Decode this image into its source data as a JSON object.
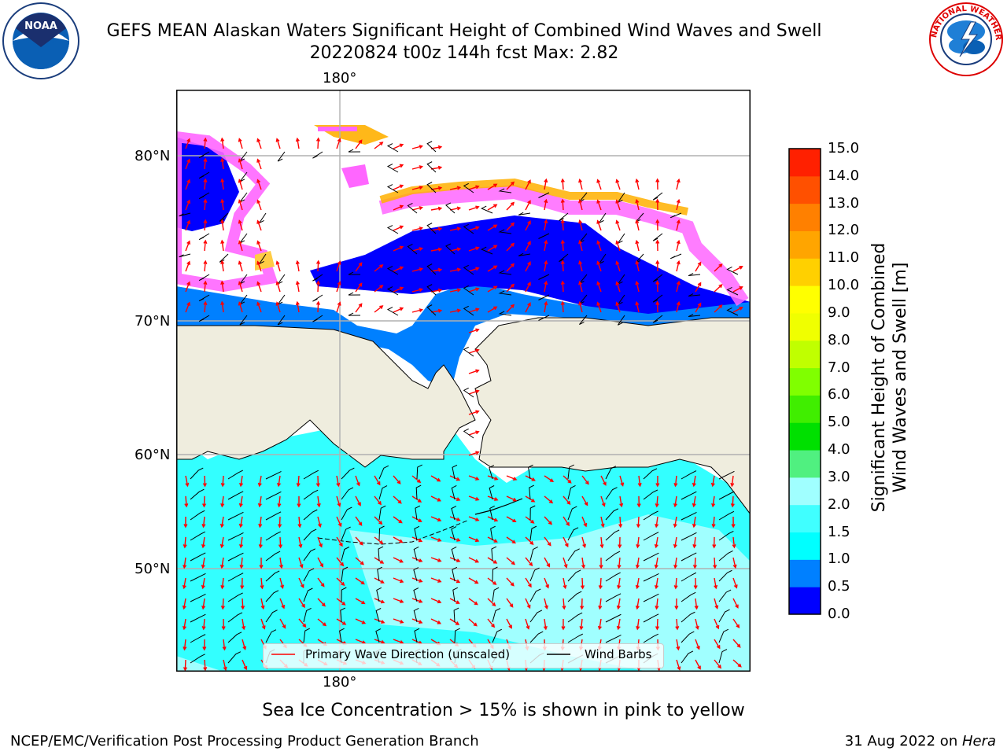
{
  "header": {
    "title_line1": "GEFS MEAN Alaskan Waters Significant Height of Combined Wind Waves and Swell",
    "title_line2": "20220824 t00z 144h fcst   Max: 2.82"
  },
  "logos": {
    "noaa_text": "NOAA",
    "noaa_ring_text": "NATIONAL OCEANIC AND ATMOSPHERIC ADMINISTRATION · U.S. DEPARTMENT OF COMMERCE",
    "nws_ring_text": "NATIONAL WEATHER SERVICE"
  },
  "map": {
    "lon_label_top": "180°",
    "lon_label_bottom": "180°",
    "lat_labels": [
      "80°N",
      "70°N",
      "60°N",
      "50°N"
    ],
    "legend": {
      "wave_label": "Primary Wave Direction (unscaled)",
      "wind_label": "Wind Barbs"
    }
  },
  "colorbar": {
    "label": "Significant Height of Combined Wind Waves and Swell [m]",
    "label_line1": "Significant Height of Combined",
    "label_line2": "Wind Waves and Swell [m]",
    "ticks": [
      "0.0",
      "0.5",
      "1.0",
      "1.5",
      "2.0",
      "3.0",
      "4.0",
      "5.0",
      "6.0",
      "7.0",
      "8.0",
      "9.0",
      "10.0",
      "11.0",
      "12.0",
      "13.0",
      "14.0",
      "15.0"
    ],
    "colors": [
      "#0000ff",
      "#0080ff",
      "#00ffff",
      "#40ffff",
      "#a0ffff",
      "#50f080",
      "#00e000",
      "#40ee00",
      "#80ff00",
      "#c0ff00",
      "#f0ff00",
      "#ffff00",
      "#ffd000",
      "#ffa500",
      "#ff8000",
      "#ff5000",
      "#ff2000"
    ]
  },
  "colors": {
    "land": "#efedde",
    "ice_pink": "#ff80ff",
    "wave_arrow": "#ff0000",
    "wind_barb": "#000000"
  },
  "footer": {
    "note": "Sea Ice Concentration > 15% is shown in pink to yellow",
    "left": "NCEP/EMC/Verification Post Processing Product Generation Branch",
    "right_date": "31 Aug 2022 on ",
    "right_machine": "Hera"
  }
}
